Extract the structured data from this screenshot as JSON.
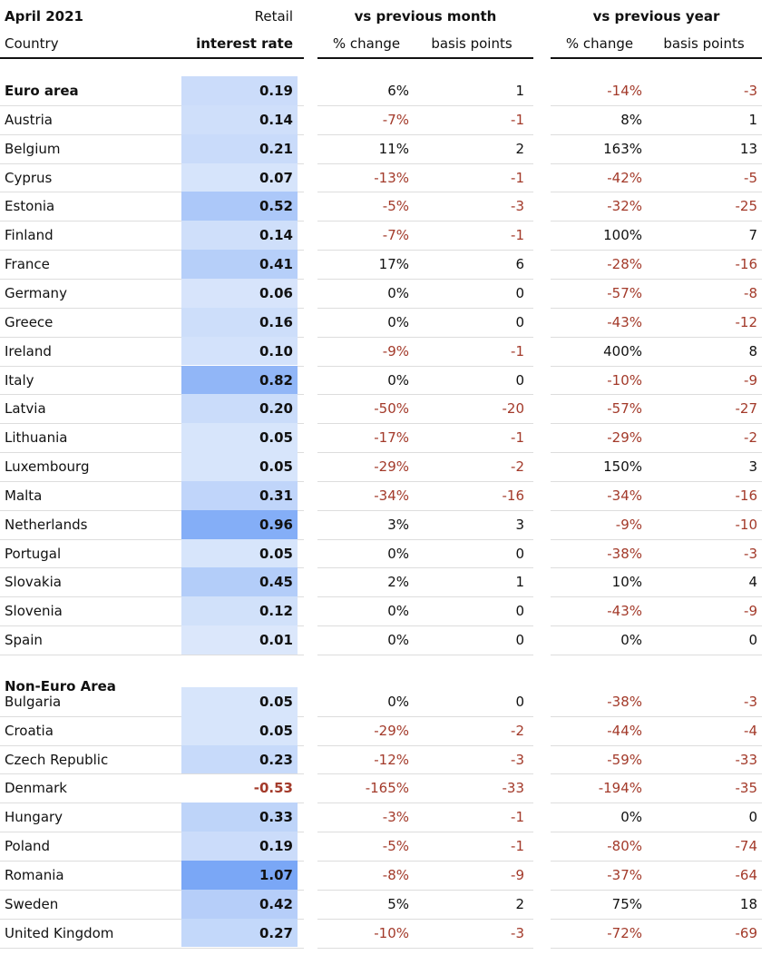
{
  "header": {
    "title": "April 2021",
    "country_label": "Country",
    "rate_label": [
      "Retail",
      "interest rate"
    ],
    "month": {
      "title": "vs previous month",
      "columns": [
        "% change",
        "basis points"
      ]
    },
    "year": {
      "title": "vs previous year",
      "columns": [
        "% change",
        "basis points"
      ]
    }
  },
  "sections": [
    {
      "title": "Euro area",
      "total": [
        "0.19",
        "6%",
        "1",
        "-14%",
        "-3"
      ],
      "rows": [
        [
          "Austria",
          "0.14",
          "-7%",
          "-1",
          "8%",
          "1"
        ],
        [
          "Belgium",
          "0.21",
          "11%",
          "2",
          "163%",
          "13"
        ],
        [
          "Cyprus",
          "0.07",
          "-13%",
          "-1",
          "-42%",
          "-5"
        ],
        [
          "Estonia",
          "0.52",
          "-5%",
          "-3",
          "-32%",
          "-25"
        ],
        [
          "Finland",
          "0.14",
          "-7%",
          "-1",
          "100%",
          "7"
        ],
        [
          "France",
          "0.41",
          "17%",
          "6",
          "-28%",
          "-16"
        ],
        [
          "Germany",
          "0.06",
          "0%",
          "0",
          "-57%",
          "-8"
        ],
        [
          "Greece",
          "0.16",
          "0%",
          "0",
          "-43%",
          "-12"
        ],
        [
          "Ireland",
          "0.10",
          "-9%",
          "-1",
          "400%",
          "8"
        ],
        [
          "Italy",
          "0.82",
          "0%",
          "0",
          "-10%",
          "-9"
        ],
        [
          "Latvia",
          "0.20",
          "-50%",
          "-20",
          "-57%",
          "-27"
        ],
        [
          "Lithuania",
          "0.05",
          "-17%",
          "-1",
          "-29%",
          "-2"
        ],
        [
          "Luxembourg",
          "0.05",
          "-29%",
          "-2",
          "150%",
          "3"
        ],
        [
          "Malta",
          "0.31",
          "-34%",
          "-16",
          "-34%",
          "-16"
        ],
        [
          "Netherlands",
          "0.96",
          "3%",
          "3",
          "-9%",
          "-10"
        ],
        [
          "Portugal",
          "0.05",
          "0%",
          "0",
          "-38%",
          "-3"
        ],
        [
          "Slovakia",
          "0.45",
          "2%",
          "1",
          "10%",
          "4"
        ],
        [
          "Slovenia",
          "0.12",
          "0%",
          "0",
          "-43%",
          "-9"
        ],
        [
          "Spain",
          "0.01",
          "0%",
          "0",
          "0%",
          "0"
        ]
      ]
    },
    {
      "title": "Non-Euro Area",
      "rows": [
        [
          "Bulgaria",
          "0.05",
          "0%",
          "0",
          "-38%",
          "-3"
        ],
        [
          "Croatia",
          "0.05",
          "-29%",
          "-2",
          "-44%",
          "-4"
        ],
        [
          "Czech Republic",
          "0.23",
          "-12%",
          "-3",
          "-59%",
          "-33"
        ],
        [
          "Denmark",
          "-0.53",
          "-165%",
          "-33",
          "-194%",
          "-35"
        ],
        [
          "Hungary",
          "0.33",
          "-3%",
          "-1",
          "0%",
          "0"
        ],
        [
          "Poland",
          "0.19",
          "-5%",
          "-1",
          "-80%",
          "-74"
        ],
        [
          "Romania",
          "1.07",
          "-8%",
          "-9",
          "-37%",
          "-64"
        ],
        [
          "Sweden",
          "0.42",
          "5%",
          "2",
          "75%",
          "18"
        ],
        [
          "United Kingdom",
          "0.27",
          "-10%",
          "-3",
          "-72%",
          "-69"
        ]
      ]
    }
  ]
}
